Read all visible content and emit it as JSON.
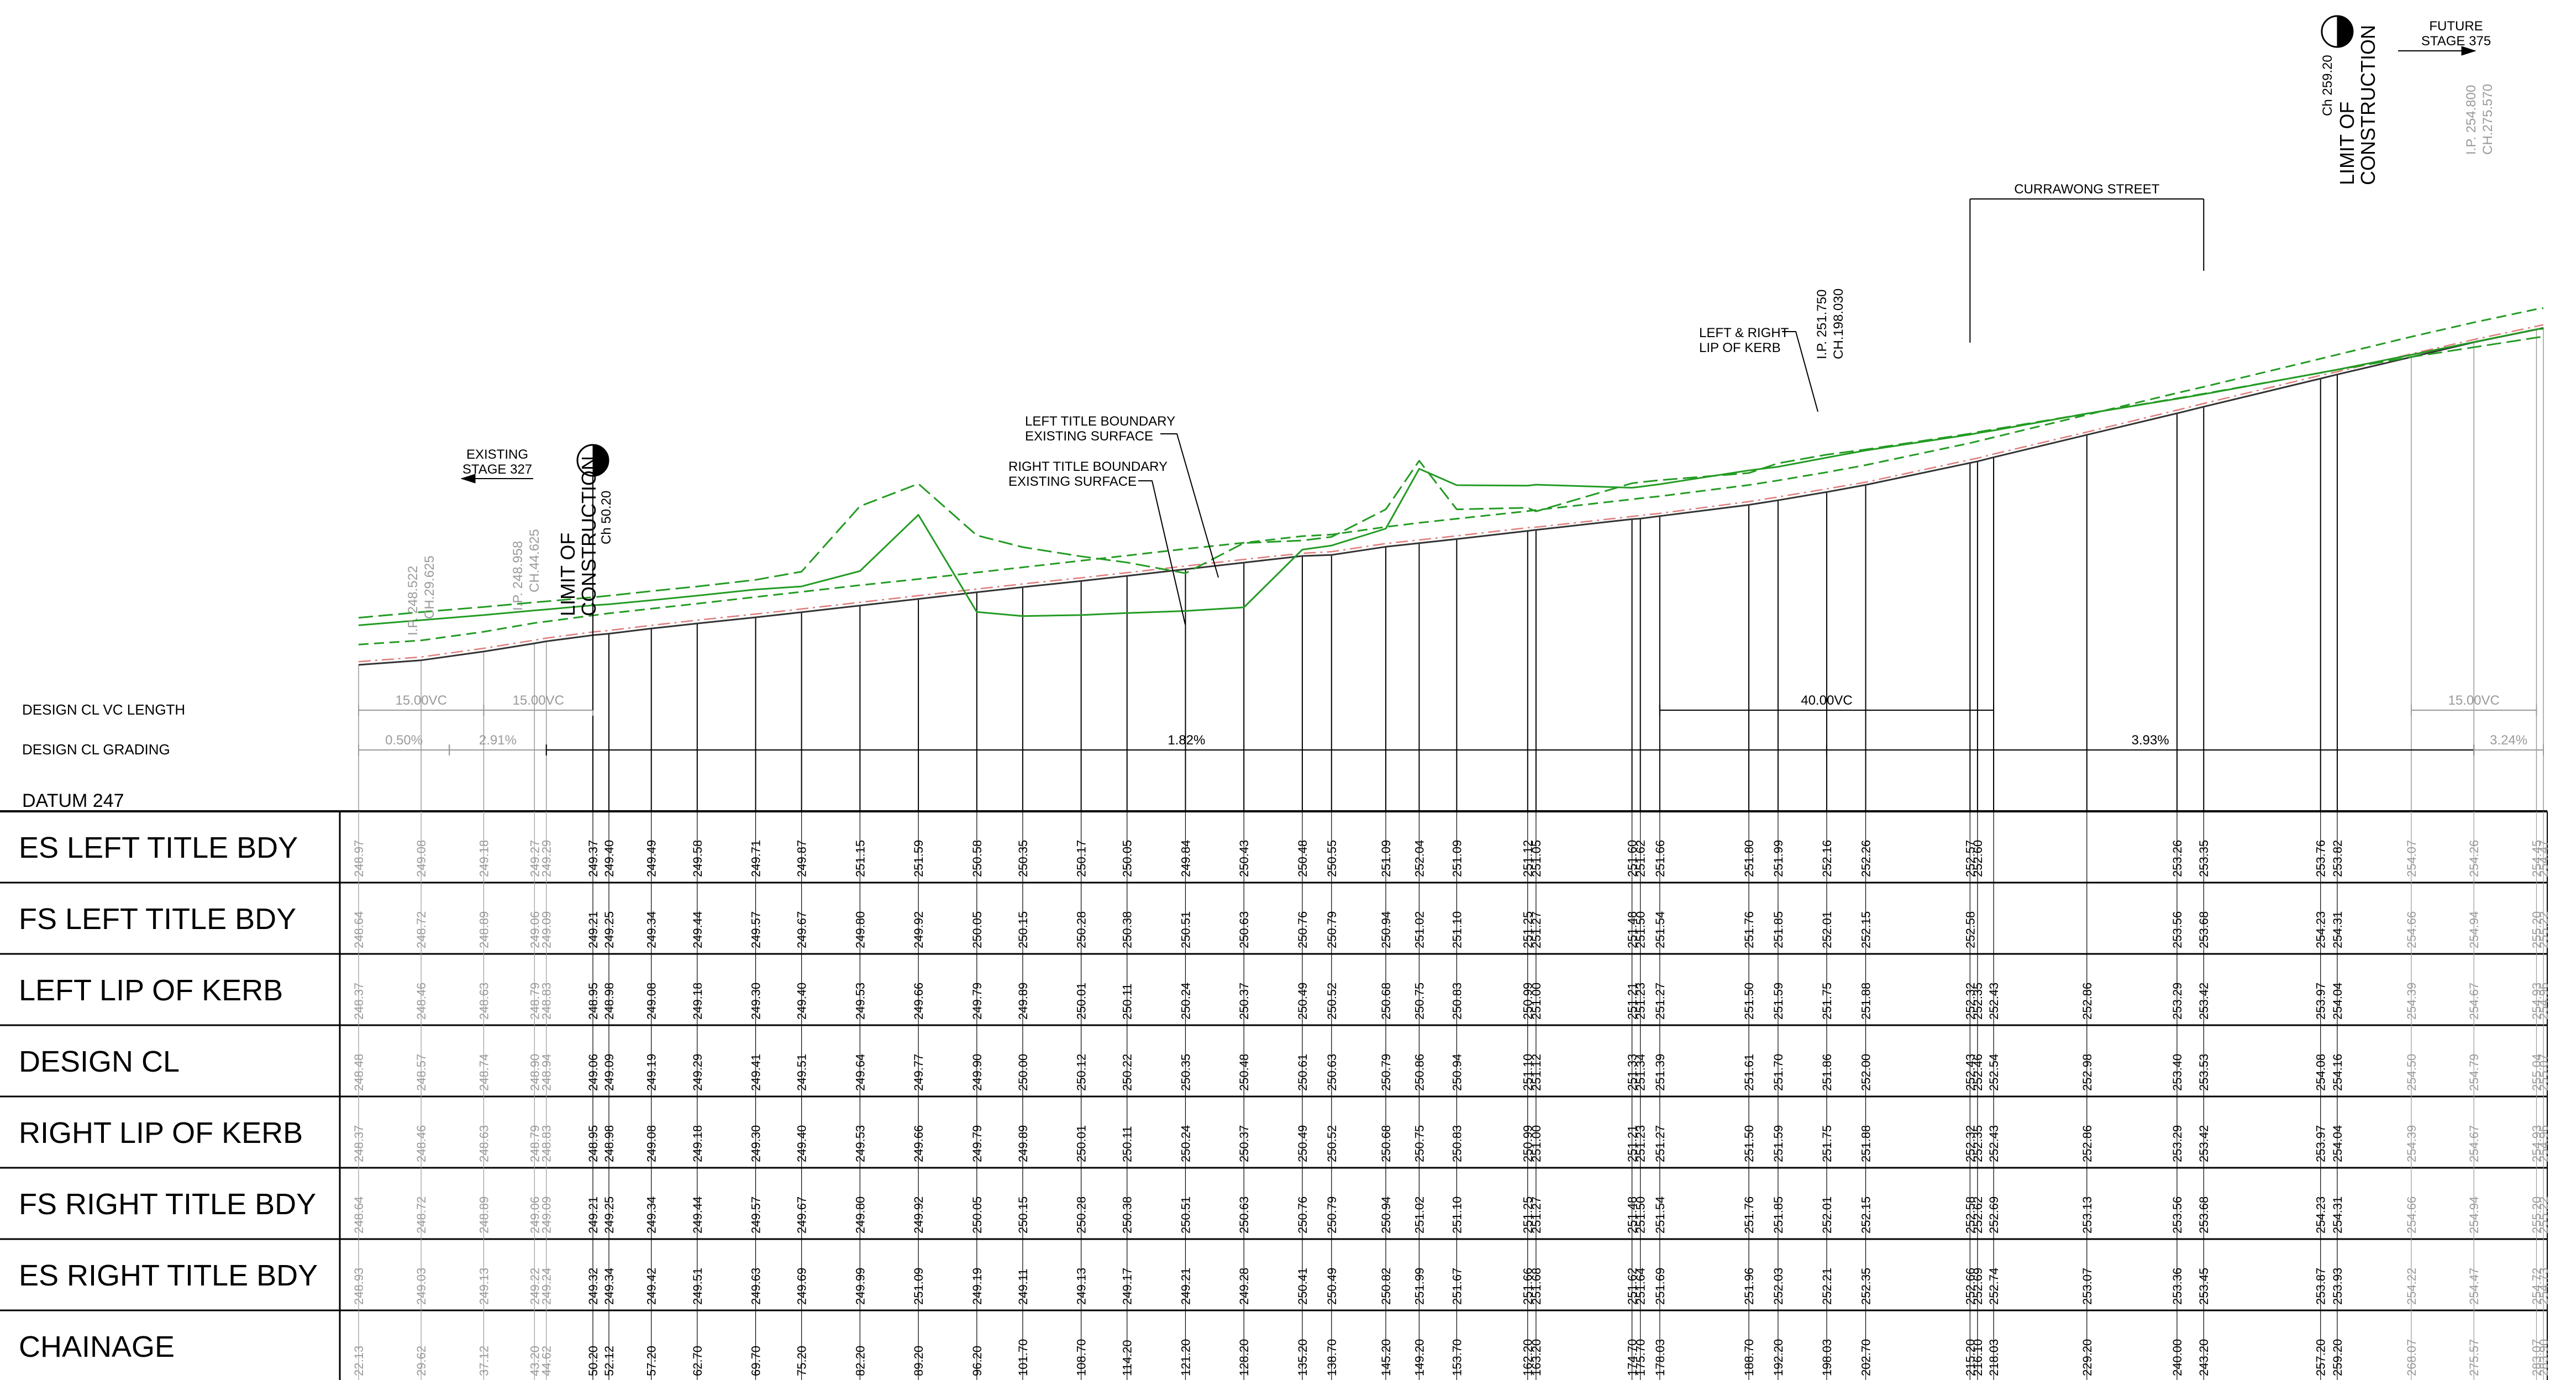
{
  "rows": [
    {
      "key": "es_left",
      "label": "ES LEFT TITLE BDY",
      "values": [
        "248.97",
        "249.08",
        "249.18",
        "249.27",
        "249.29",
        "249.37",
        "249.40",
        "249.49",
        "249.58",
        "249.71",
        "249.87",
        "251.15",
        "251.59",
        "250.58",
        "250.35",
        "250.17",
        "250.05",
        "249.84",
        "250.43",
        "250.48",
        "250.55",
        "251.09",
        "252.04",
        "251.09",
        "251.12",
        "251.05",
        "251.60",
        "251.62",
        "251.66",
        "251.80",
        "251.99",
        "252.16",
        "252.26",
        "252.57",
        "252.60",
        "",
        "",
        "253.26",
        "253.35",
        "253.76",
        "253.82",
        "254.07",
        "254.26",
        "254.45",
        "254.47"
      ]
    },
    {
      "key": "fs_left",
      "label": "FS LEFT TITLE BDY",
      "values": [
        "248.64",
        "248.72",
        "248.89",
        "249.06",
        "249.09",
        "249.21",
        "249.25",
        "249.34",
        "249.44",
        "249.57",
        "249.67",
        "249.80",
        "249.92",
        "250.05",
        "250.15",
        "250.28",
        "250.38",
        "250.51",
        "250.63",
        "250.76",
        "250.79",
        "250.94",
        "251.02",
        "251.10",
        "251.25",
        "251.27",
        "251.48",
        "251.50",
        "251.54",
        "251.76",
        "251.85",
        "252.01",
        "252.15",
        "252.58",
        "",
        "",
        "",
        "253.56",
        "253.68",
        "254.23",
        "254.31",
        "254.66",
        "254.94",
        "255.20",
        "255.22"
      ]
    },
    {
      "key": "left_lip",
      "label": "LEFT LIP OF KERB",
      "values": [
        "248.37",
        "248.46",
        "248.63",
        "248.79",
        "248.83",
        "248.95",
        "248.98",
        "249.08",
        "249.18",
        "249.30",
        "249.40",
        "249.53",
        "249.66",
        "249.79",
        "249.89",
        "250.01",
        "250.11",
        "250.24",
        "250.37",
        "250.49",
        "250.52",
        "250.68",
        "250.75",
        "250.83",
        "250.99",
        "251.00",
        "251.21",
        "251.23",
        "251.27",
        "251.50",
        "251.59",
        "251.75",
        "251.88",
        "252.32",
        "252.35",
        "252.43",
        "252.86",
        "253.29",
        "253.42",
        "253.97",
        "254.04",
        "254.39",
        "254.67",
        "254.93",
        "254.96"
      ]
    },
    {
      "key": "design_cl",
      "label": "DESIGN CL",
      "values": [
        "248.48",
        "248.57",
        "248.74",
        "248.90",
        "248.94",
        "249.06",
        "249.09",
        "249.19",
        "249.29",
        "249.41",
        "249.51",
        "249.64",
        "249.77",
        "249.90",
        "250.00",
        "250.12",
        "250.22",
        "250.35",
        "250.48",
        "250.61",
        "250.63",
        "250.79",
        "250.86",
        "250.94",
        "251.10",
        "251.12",
        "251.33",
        "251.34",
        "251.39",
        "251.61",
        "251.70",
        "251.86",
        "252.00",
        "252.43",
        "252.46",
        "252.54",
        "252.98",
        "253.40",
        "253.53",
        "254.08",
        "254.16",
        "254.50",
        "254.79",
        "255.04",
        "255.07"
      ]
    },
    {
      "key": "right_lip",
      "label": "RIGHT LIP OF KERB",
      "values": [
        "248.37",
        "248.46",
        "248.63",
        "248.79",
        "248.83",
        "248.95",
        "248.98",
        "249.08",
        "249.18",
        "249.30",
        "249.40",
        "249.53",
        "249.66",
        "249.79",
        "249.89",
        "250.01",
        "250.11",
        "250.24",
        "250.37",
        "250.49",
        "250.52",
        "250.68",
        "250.75",
        "250.83",
        "250.99",
        "251.00",
        "251.21",
        "251.23",
        "251.27",
        "251.50",
        "251.59",
        "251.75",
        "251.88",
        "252.32",
        "252.35",
        "252.43",
        "252.86",
        "253.29",
        "253.42",
        "253.97",
        "254.04",
        "254.39",
        "254.67",
        "254.93",
        "254.96"
      ]
    },
    {
      "key": "fs_right",
      "label": "FS RIGHT TITLE BDY",
      "values": [
        "248.64",
        "248.72",
        "248.89",
        "249.06",
        "249.09",
        "249.21",
        "249.25",
        "249.34",
        "249.44",
        "249.57",
        "249.67",
        "249.80",
        "249.92",
        "250.05",
        "250.15",
        "250.28",
        "250.38",
        "250.51",
        "250.63",
        "250.76",
        "250.79",
        "250.94",
        "251.02",
        "251.10",
        "251.25",
        "251.27",
        "251.48",
        "251.50",
        "251.54",
        "251.76",
        "251.85",
        "252.01",
        "252.15",
        "252.58",
        "252.62",
        "252.69",
        "253.13",
        "253.56",
        "253.68",
        "254.23",
        "254.31",
        "254.66",
        "254.94",
        "255.20",
        "255.22"
      ]
    },
    {
      "key": "es_right",
      "label": "ES RIGHT TITLE BDY",
      "values": [
        "248.93",
        "249.03",
        "249.13",
        "249.22",
        "249.24",
        "249.32",
        "249.34",
        "249.42",
        "249.51",
        "249.63",
        "249.69",
        "249.99",
        "251.09",
        "249.19",
        "249.11",
        "249.13",
        "249.17",
        "249.21",
        "249.28",
        "250.41",
        "250.49",
        "250.82",
        "251.99",
        "251.67",
        "251.66",
        "251.68",
        "251.62",
        "251.64",
        "251.69",
        "251.96",
        "252.03",
        "252.21",
        "252.35",
        "252.66",
        "252.69",
        "252.74",
        "253.07",
        "253.36",
        "253.45",
        "253.87",
        "253.93",
        "254.22",
        "254.47",
        "254.72",
        "254.73"
      ]
    },
    {
      "key": "chainage",
      "label": "CHAINAGE",
      "values": [
        "22.13",
        "29.62",
        "37.12",
        "43.20",
        "44.62",
        "50.20",
        "52.12",
        "57.20",
        "62.70",
        "69.70",
        "75.20",
        "82.20",
        "89.20",
        "96.20",
        "101.70",
        "108.70",
        "114.20",
        "121.20",
        "128.20",
        "135.20",
        "138.70",
        "145.20",
        "149.20",
        "153.70",
        "162.20",
        "163.20",
        "174.70",
        "175.70",
        "178.03",
        "188.70",
        "192.20",
        "198.03",
        "202.70",
        "215.20",
        "216.10",
        "218.03",
        "229.20",
        "240.00",
        "243.20",
        "257.20",
        "259.20",
        "268.07",
        "275.57",
        "283.07",
        "283.90"
      ]
    }
  ],
  "labels": {
    "design_cl_vc_length": "DESIGN CL VC LENGTH",
    "design_cl_grading": "DESIGN CL GRADING",
    "datum": "DATUM 247",
    "vc1": "15.00VC",
    "vc2": "15.00VC",
    "vc3": "40.00VC",
    "vc4": "15.00VC",
    "grade1": "0.50%",
    "grade2": "2.91%",
    "grade3": "1.82%",
    "grade4": "3.93%",
    "grade5": "3.24%",
    "existing_stage": [
      "EXISTING",
      "STAGE 327"
    ],
    "future_stage": [
      "FUTURE",
      "STAGE 375"
    ],
    "loc_left": [
      "LIMIT OF",
      "CONSTRUCTION"
    ],
    "loc_right": [
      "LIMIT OF",
      "CONSTRUCTION"
    ],
    "ch_left": "Ch 50.20",
    "ch_right": "Ch 259.20",
    "ip1": [
      "I.P. 248.522",
      "CH.29.625"
    ],
    "ip2": [
      "I.P. 248.958",
      "CH.44.625"
    ],
    "ip3": [
      "I.P. 251.750",
      "CH.198.030"
    ],
    "ip4": [
      "I.P. 254.800",
      "CH.275.570"
    ],
    "lr_kerb": [
      "LEFT & RIGHT",
      "LIP OF KERB"
    ],
    "left_tb": [
      "LEFT TITLE BOUNDARY",
      "EXISTING SURFACE"
    ],
    "right_tb": [
      "RIGHT TITLE BOUNDARY",
      "EXISTING SURFACE"
    ],
    "street": "CURRAWONG STREET"
  },
  "colors": {
    "line": "#000000",
    "grey": "#9a9a9a",
    "green": "#239b23",
    "red": "#e07b7b"
  }
}
